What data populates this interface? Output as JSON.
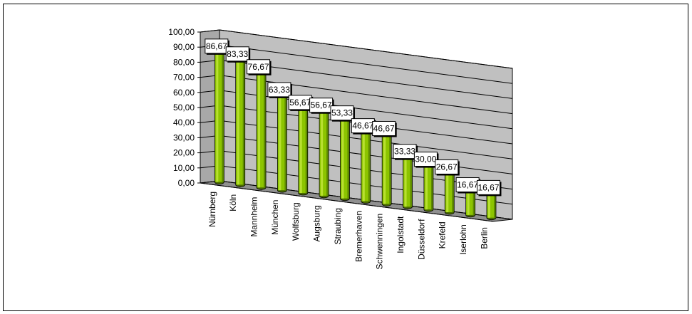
{
  "chart_data": {
    "type": "bar",
    "title": "",
    "xlabel": "",
    "ylabel": "",
    "ylim": [
      0,
      100
    ],
    "yticks": [
      "0,00",
      "10,00",
      "20,00",
      "30,00",
      "40,00",
      "50,00",
      "60,00",
      "70,00",
      "80,00",
      "90,00",
      "100,00"
    ],
    "grid": true,
    "legend": "none",
    "bar_color": "#8cc400",
    "wall_color": "#c0c0c0",
    "categories": [
      "Nürnberg",
      "Köln",
      "Mannheim",
      "München",
      "Wolfsburg",
      "Augsburg",
      "Straubing",
      "Bremerhaven",
      "Schwenningen",
      "Ingolstadt",
      "Düsseldorf",
      "Krefeld",
      "Iserlohn",
      "Berlin"
    ],
    "values": [
      86.67,
      83.33,
      76.67,
      63.33,
      56.67,
      56.67,
      53.33,
      46.67,
      46.67,
      33.33,
      30.0,
      26.67,
      16.67,
      16.67
    ],
    "data_labels": [
      "86,67",
      "83,33",
      "76,67",
      "63,33",
      "56,67",
      "56,67",
      "53,33",
      "46,67",
      "46,67",
      "33,33",
      "30,00",
      "26,67",
      "16,67",
      "16,67"
    ]
  }
}
